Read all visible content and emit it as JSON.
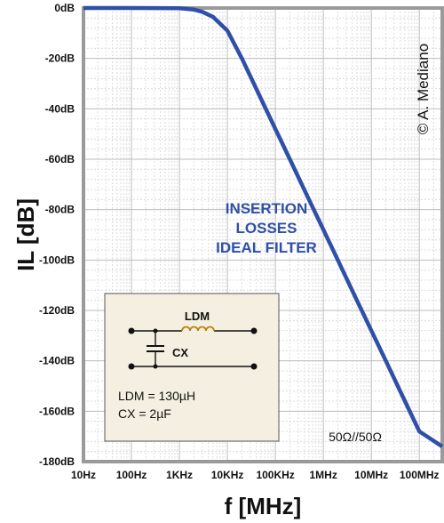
{
  "chart_data": {
    "type": "line",
    "ylabel": "IL [dB]",
    "xlabel": "f [MHz]",
    "x_scale": "log",
    "xlim": [
      10,
      300000000
    ],
    "ylim": [
      -180,
      0
    ],
    "grid": true,
    "x_ticks": [
      {
        "value": 10,
        "label": "10Hz"
      },
      {
        "value": 100,
        "label": "100Hz"
      },
      {
        "value": 1000,
        "label": "1KHz"
      },
      {
        "value": 10000,
        "label": "10KHz"
      },
      {
        "value": 100000,
        "label": "100KHz"
      },
      {
        "value": 1000000,
        "label": "1MHz"
      },
      {
        "value": 10000000,
        "label": "10MHz"
      },
      {
        "value": 100000000,
        "label": "100MHz"
      }
    ],
    "y_ticks": [
      {
        "value": 0,
        "label": "0dB"
      },
      {
        "value": -20,
        "label": "-20dB"
      },
      {
        "value": -40,
        "label": "-40dB"
      },
      {
        "value": -60,
        "label": "-60dB"
      },
      {
        "value": -80,
        "label": "-80dB"
      },
      {
        "value": -100,
        "label": "-100dB"
      },
      {
        "value": -120,
        "label": "-120dB"
      },
      {
        "value": -140,
        "label": "-140dB"
      },
      {
        "value": -160,
        "label": "-160dB"
      },
      {
        "value": -180,
        "label": "-180dB"
      }
    ],
    "series": [
      {
        "color": "#2f4fa8",
        "x": [
          10,
          100,
          1000,
          2000,
          3000,
          5000,
          10000,
          20000,
          50000,
          100000,
          200000,
          500000,
          1000000,
          2000000,
          5000000,
          10000000,
          20000000,
          50000000,
          100000000,
          300000000
        ],
        "y": [
          0,
          0,
          -0.1,
          -0.6,
          -1.5,
          -3.5,
          -9,
          -20,
          -36,
          -48,
          -60,
          -76,
          -88,
          -100,
          -116,
          -128,
          -140,
          -156,
          -168,
          -174
        ]
      }
    ],
    "annotation": [
      "INSERTION",
      "LOSSES",
      "IDEAL FILTER"
    ],
    "copyright": "© A. Mediano",
    "impedance_label": "50Ω//50Ω",
    "inset": {
      "inductor_label": "LDM",
      "capacitor_label": "CX",
      "values": [
        "LDM = 130µH",
        "CX = 2µF"
      ]
    }
  },
  "colors": {
    "curve": "#2f4fa8",
    "annotation": "#2f4fa8",
    "inset_background": "#f4efe0",
    "inset_inductor": "#b8860b"
  }
}
